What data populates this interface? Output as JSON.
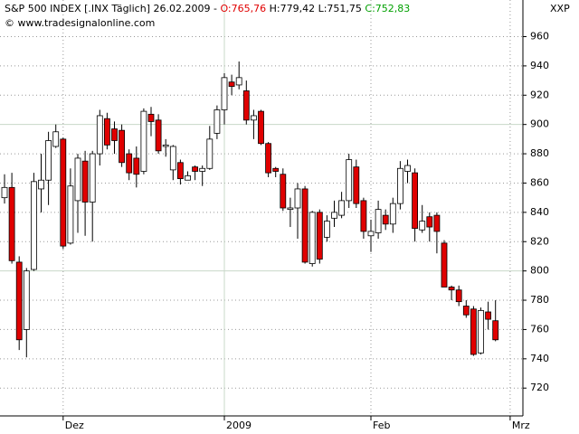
{
  "header": {
    "symbol": "S&P 500 INDEX [.INX  Täglich] 26.02.2009 -",
    "open": "O:765,76",
    "high": "H:779,42",
    "low": "L:751,75",
    "close": "C:752,83",
    "copyright": "© www.tradesignalonline.com"
  },
  "chart_data": {
    "type": "candlestick",
    "y_axis_label": "XXP",
    "categories": [
      null,
      null,
      null,
      null,
      null,
      null,
      null,
      null,
      "Dez",
      null,
      null,
      null,
      null,
      null,
      null,
      null,
      null,
      null,
      null,
      null,
      null,
      null,
      null,
      null,
      null,
      null,
      null,
      null,
      null,
      null,
      "2009",
      null,
      null,
      null,
      null,
      null,
      null,
      null,
      null,
      null,
      null,
      null,
      null,
      null,
      null,
      null,
      null,
      null,
      null,
      null,
      "Feb",
      null,
      null,
      null,
      null,
      null,
      null,
      null,
      null,
      null,
      null,
      null,
      null,
      null,
      null,
      null,
      null,
      null,
      null,
      "Mrz"
    ],
    "open": [
      850,
      857,
      806,
      760,
      801,
      856,
      862,
      885,
      890,
      819,
      848,
      875,
      847,
      880,
      904,
      897,
      896,
      880,
      877,
      868,
      907,
      903,
      885,
      869,
      874,
      862,
      871,
      868,
      870,
      894,
      910,
      929,
      927,
      923,
      903,
      909,
      887,
      870,
      866,
      842,
      843,
      856,
      805,
      840,
      823,
      836,
      838,
      848,
      871,
      848,
      824,
      826,
      838,
      832,
      846,
      868,
      867,
      828,
      837,
      838,
      819,
      789,
      787,
      776,
      774,
      744,
      772,
      766,
      null,
      null
    ],
    "high": [
      866,
      867,
      810,
      802,
      867,
      880,
      895,
      900,
      891,
      870,
      880,
      882,
      882,
      910,
      908,
      902,
      900,
      883,
      885,
      911,
      912,
      907,
      890,
      886,
      876,
      868,
      872,
      872,
      899,
      913,
      935,
      934,
      943,
      930,
      910,
      910,
      888,
      871,
      870,
      850,
      860,
      858,
      841,
      842,
      838,
      848,
      854,
      880,
      876,
      850,
      835,
      848,
      842,
      850,
      875,
      876,
      870,
      845,
      840,
      840,
      821,
      790,
      790,
      780,
      776,
      775,
      779,
      780,
      null,
      null
    ],
    "low": [
      846,
      805,
      746,
      741,
      800,
      840,
      845,
      884,
      815,
      818,
      826,
      824,
      820,
      872,
      883,
      880,
      871,
      862,
      857,
      866,
      892,
      880,
      878,
      862,
      859,
      862,
      862,
      858,
      869,
      890,
      900,
      920,
      924,
      900,
      890,
      886,
      864,
      864,
      841,
      830,
      822,
      805,
      803,
      805,
      820,
      830,
      836,
      843,
      843,
      822,
      813,
      822,
      828,
      826,
      842,
      860,
      820,
      826,
      820,
      812,
      789,
      780,
      776,
      768,
      742,
      743,
      760,
      752,
      null,
      null
    ],
    "close": [
      857,
      807,
      753,
      800,
      861,
      862,
      889,
      895,
      817,
      858,
      877,
      847,
      880,
      906,
      886,
      889,
      874,
      867,
      866,
      909,
      902,
      882,
      886,
      885,
      863,
      865,
      868,
      870,
      890,
      910,
      932,
      926,
      932,
      903,
      906,
      887,
      867,
      868,
      843,
      843,
      856,
      806,
      840,
      808,
      834,
      840,
      848,
      876,
      846,
      827,
      827,
      842,
      832,
      846,
      870,
      872,
      829,
      834,
      830,
      827,
      789,
      787,
      779,
      770,
      743,
      773,
      767,
      753,
      null,
      null
    ],
    "up_color": "#ffffff",
    "down_color": "#e00000",
    "ylim": [
      701,
      985
    ],
    "yticks": [
      720,
      740,
      760,
      780,
      800,
      820,
      840,
      860,
      880,
      900,
      920,
      940,
      960
    ],
    "grid": true
  }
}
